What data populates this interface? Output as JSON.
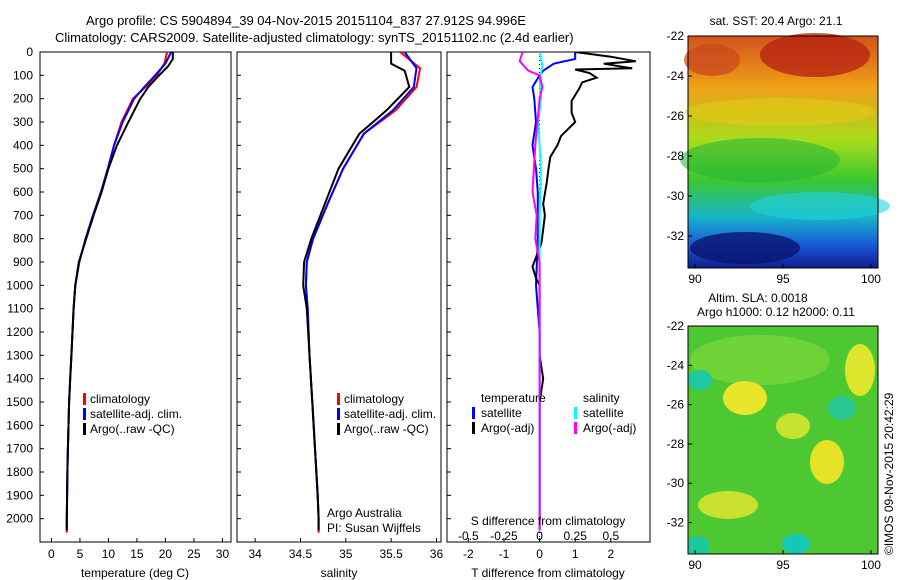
{
  "header": {
    "line1": "Argo profile: CS 5904894_39 04-Nov-2015 20151104_837 27.912S 94.996E",
    "line2": "Climatology: CARS2009. Satellite-adjusted climatology: synTS_20151102.nc (2.4d earlier)"
  },
  "colors": {
    "climatology": "#ff0000",
    "satellite": "#0000ff",
    "argo": "#000000",
    "sal_satellite": "#00ffff",
    "sal_argo": "#ff00ff"
  },
  "chart_data": [
    {
      "id": "temperature",
      "type": "line",
      "xlabel": "temperature (deg C)",
      "ylabel": "",
      "xlim": [
        -2,
        31.5
      ],
      "ylim": [
        2100,
        0
      ],
      "xticks": [
        0,
        5,
        10,
        15,
        20,
        25,
        30
      ],
      "yticks": [
        0,
        100,
        200,
        300,
        400,
        500,
        600,
        700,
        800,
        900,
        1000,
        1100,
        1200,
        1300,
        1400,
        1500,
        1600,
        1700,
        1800,
        1900,
        2000
      ],
      "legend": [
        "climatology",
        "satellite-adj. clim.",
        "Argo(..raw -QC)"
      ],
      "series": [
        {
          "name": "climatology",
          "color": "#ff0000",
          "points": [
            [
              20.3,
              0
            ],
            [
              19.8,
              50
            ],
            [
              18.5,
              100
            ],
            [
              16.5,
              150
            ],
            [
              14.3,
              200
            ],
            [
              12.3,
              300
            ],
            [
              11.0,
              400
            ],
            [
              9.9,
              500
            ],
            [
              8.7,
              600
            ],
            [
              7.3,
              700
            ],
            [
              6.0,
              800
            ],
            [
              4.9,
              900
            ],
            [
              4.2,
              1000
            ],
            [
              3.9,
              1100
            ],
            [
              3.7,
              1200
            ],
            [
              3.5,
              1300
            ],
            [
              3.3,
              1400
            ],
            [
              3.1,
              1500
            ],
            [
              3.0,
              1600
            ],
            [
              2.9,
              1700
            ],
            [
              2.8,
              1800
            ],
            [
              2.75,
              1900
            ],
            [
              2.7,
              2000
            ],
            [
              2.7,
              2060
            ]
          ]
        },
        {
          "name": "satellite-adj. clim.",
          "color": "#0000ff",
          "points": [
            [
              21.0,
              0
            ],
            [
              20.0,
              50
            ],
            [
              18.2,
              100
            ],
            [
              16.3,
              150
            ],
            [
              14.5,
              200
            ],
            [
              12.5,
              300
            ],
            [
              11.0,
              400
            ],
            [
              9.9,
              500
            ],
            [
              8.7,
              600
            ],
            [
              7.3,
              700
            ],
            [
              6.0,
              800
            ],
            [
              4.9,
              900
            ],
            [
              4.2,
              1000
            ],
            [
              3.9,
              1100
            ],
            [
              3.7,
              1200
            ],
            [
              3.5,
              1300
            ],
            [
              3.3,
              1400
            ],
            [
              3.1,
              1500
            ],
            [
              3.0,
              1600
            ],
            [
              2.9,
              1700
            ],
            [
              2.8,
              1800
            ],
            [
              2.75,
              1900
            ],
            [
              2.7,
              2000
            ],
            [
              2.7,
              2050
            ]
          ]
        },
        {
          "name": "Argo(..raw -QC)",
          "color": "#000000",
          "points": [
            [
              21.3,
              0
            ],
            [
              21.3,
              30
            ],
            [
              20.5,
              60
            ],
            [
              18.5,
              110
            ],
            [
              17.0,
              150
            ],
            [
              15.6,
              200
            ],
            [
              13.5,
              300
            ],
            [
              11.5,
              400
            ],
            [
              10.0,
              500
            ],
            [
              8.8,
              600
            ],
            [
              7.4,
              700
            ],
            [
              6.1,
              800
            ],
            [
              4.8,
              900
            ],
            [
              4.2,
              1000
            ],
            [
              3.9,
              1100
            ],
            [
              3.7,
              1200
            ],
            [
              3.5,
              1300
            ],
            [
              3.3,
              1400
            ],
            [
              3.1,
              1500
            ],
            [
              3.0,
              1600
            ],
            [
              2.9,
              1700
            ],
            [
              2.8,
              1800
            ],
            [
              2.75,
              1900
            ],
            [
              2.7,
              2000
            ],
            [
              2.7,
              2050
            ]
          ]
        }
      ]
    },
    {
      "id": "salinity",
      "type": "line",
      "xlabel": "salinity",
      "xlim": [
        33.8,
        36.05
      ],
      "ylim": [
        2100,
        0
      ],
      "xticks": [
        34,
        34.5,
        35,
        35.5,
        36
      ],
      "legend": [
        "climatology",
        "satellite-adj. clim.",
        "Argo(..raw -QC)"
      ],
      "annotation": [
        "Argo Australia",
        "PI: Susan Wijffels"
      ],
      "series": [
        {
          "name": "climatology",
          "color": "#ff0000",
          "points": [
            [
              35.6,
              0
            ],
            [
              35.82,
              70
            ],
            [
              35.78,
              150
            ],
            [
              35.55,
              250
            ],
            [
              35.2,
              350
            ],
            [
              34.97,
              500
            ],
            [
              34.8,
              650
            ],
            [
              34.63,
              800
            ],
            [
              34.57,
              900
            ],
            [
              34.56,
              1000
            ],
            [
              34.58,
              1100
            ],
            [
              34.6,
              1300
            ],
            [
              34.63,
              1500
            ],
            [
              34.66,
              1700
            ],
            [
              34.69,
              1900
            ],
            [
              34.7,
              2000
            ],
            [
              34.7,
              2060
            ]
          ]
        },
        {
          "name": "satellite-adj. clim.",
          "color": "#0000ff",
          "points": [
            [
              35.65,
              0
            ],
            [
              35.78,
              70
            ],
            [
              35.75,
              150
            ],
            [
              35.52,
              250
            ],
            [
              35.2,
              350
            ],
            [
              34.97,
              500
            ],
            [
              34.8,
              650
            ],
            [
              34.64,
              800
            ],
            [
              34.57,
              900
            ],
            [
              34.56,
              1000
            ],
            [
              34.58,
              1100
            ],
            [
              34.6,
              1300
            ],
            [
              34.63,
              1500
            ],
            [
              34.66,
              1700
            ],
            [
              34.69,
              1900
            ],
            [
              34.7,
              2000
            ],
            [
              34.7,
              2050
            ]
          ]
        },
        {
          "name": "Argo(..raw -QC)",
          "color": "#000000",
          "points": [
            [
              35.5,
              0
            ],
            [
              35.5,
              50
            ],
            [
              35.65,
              80
            ],
            [
              35.7,
              150
            ],
            [
              35.45,
              250
            ],
            [
              35.15,
              350
            ],
            [
              34.92,
              500
            ],
            [
              34.72,
              700
            ],
            [
              34.62,
              800
            ],
            [
              34.54,
              900
            ],
            [
              34.53,
              1000
            ],
            [
              34.57,
              1100
            ],
            [
              34.6,
              1300
            ],
            [
              34.63,
              1500
            ],
            [
              34.66,
              1700
            ],
            [
              34.69,
              1900
            ],
            [
              34.7,
              2000
            ],
            [
              34.7,
              2050
            ]
          ]
        }
      ]
    },
    {
      "id": "difference",
      "type": "line",
      "xlabel": "T difference from climatology",
      "x2label": "S difference from climatology",
      "xlim": [
        -2.6,
        3.1
      ],
      "x2lim": [
        -0.65,
        0.775
      ],
      "ylim": [
        2100,
        0
      ],
      "xticks": [
        -2,
        -1,
        0,
        1,
        2
      ],
      "x2ticks": [
        -0.5,
        -0.25,
        0,
        0.25,
        0.5
      ],
      "x2ticklabels": [
        "-0.5",
        "-0.25",
        "0",
        "0.25",
        "0.5"
      ],
      "legend_headers": [
        "temperature",
        "salinity"
      ],
      "legend": [
        "satellite",
        "Argo(-adj)",
        "satellite",
        "Argo(-adj)"
      ],
      "series": [
        {
          "name": "T satellite",
          "color": "#0000ff",
          "axis": "T",
          "points": [
            [
              1.0,
              0
            ],
            [
              1.0,
              30
            ],
            [
              0.4,
              50
            ],
            [
              0.1,
              80
            ],
            [
              0.0,
              100
            ],
            [
              -0.2,
              150
            ],
            [
              -0.15,
              200
            ],
            [
              -0.1,
              300
            ],
            [
              -0.2,
              400
            ],
            [
              -0.1,
              500
            ],
            [
              -0.05,
              600
            ],
            [
              -0.05,
              800
            ],
            [
              -0.1,
              1000
            ],
            [
              0,
              1200
            ],
            [
              0,
              1500
            ],
            [
              0,
              1800
            ],
            [
              0,
              2050
            ]
          ]
        },
        {
          "name": "T Argo(-adj)",
          "color": "#000000",
          "axis": "T",
          "points": [
            [
              1.0,
              0
            ],
            [
              2.0,
              20
            ],
            [
              2.7,
              40
            ],
            [
              1.8,
              50
            ],
            [
              2.6,
              70
            ],
            [
              1.0,
              75
            ],
            [
              1.4,
              90
            ],
            [
              1.6,
              110
            ],
            [
              1.2,
              130
            ],
            [
              1.1,
              160
            ],
            [
              0.9,
              210
            ],
            [
              0.9,
              260
            ],
            [
              1.0,
              300
            ],
            [
              0.6,
              360
            ],
            [
              0.5,
              400
            ],
            [
              0.3,
              450
            ],
            [
              0.25,
              500
            ],
            [
              0.2,
              560
            ],
            [
              0.1,
              650
            ],
            [
              0.15,
              700
            ],
            [
              0.1,
              760
            ],
            [
              0.05,
              820
            ],
            [
              -0.1,
              880
            ],
            [
              -0.2,
              920
            ],
            [
              -0.1,
              970
            ],
            [
              0,
              1000
            ],
            [
              0,
              1100
            ],
            [
              0,
              1300
            ],
            [
              0.1,
              1400
            ],
            [
              0,
              1500
            ],
            [
              0,
              1700
            ],
            [
              0,
              1900
            ],
            [
              0,
              2050
            ]
          ]
        },
        {
          "name": "S satellite",
          "color": "#00ffff",
          "axis": "S",
          "points": [
            [
              0.0,
              0
            ],
            [
              0.02,
              60
            ],
            [
              0.0,
              120
            ],
            [
              0.01,
              200
            ],
            [
              -0.01,
              300
            ],
            [
              0.0,
              400
            ],
            [
              0.01,
              500
            ],
            [
              0,
              700
            ],
            [
              0,
              1000
            ],
            [
              0,
              1300
            ],
            [
              0,
              1700
            ],
            [
              0,
              2050
            ]
          ]
        },
        {
          "name": "S Argo(-adj)",
          "color": "#ff00ff",
          "axis": "S",
          "points": [
            [
              -0.12,
              0
            ],
            [
              -0.14,
              40
            ],
            [
              -0.08,
              80
            ],
            [
              0.0,
              100
            ],
            [
              0.02,
              150
            ],
            [
              0.0,
              200
            ],
            [
              -0.03,
              400
            ],
            [
              -0.05,
              600
            ],
            [
              -0.02,
              700
            ],
            [
              -0.03,
              800
            ],
            [
              0.0,
              900
            ],
            [
              0,
              1000
            ],
            [
              0,
              1300
            ],
            [
              0,
              1600
            ],
            [
              0,
              2050
            ]
          ]
        }
      ]
    },
    {
      "id": "sst_map",
      "type": "heatmap",
      "title": "sat. SST: 20.4 Argo: 21.1",
      "xlim": [
        89.6,
        100.4
      ],
      "ylim": [
        -33.6,
        -22
      ],
      "xticks": [
        90,
        95,
        100
      ],
      "yticks": [
        -22,
        -24,
        -26,
        -28,
        -30,
        -32
      ],
      "gradient": "north warm (red/orange) to south cool (blue)"
    },
    {
      "id": "sla_map",
      "type": "heatmap",
      "title": [
        "Altim. SLA: 0.0018",
        "Argo h1000: 0.12 h2000: 0.11"
      ],
      "xlim": [
        89.6,
        100.4
      ],
      "ylim": [
        -33.6,
        -22
      ],
      "xticks": [
        90,
        95,
        100
      ],
      "yticks": [
        -22,
        -24,
        -26,
        -28,
        -30,
        -32
      ],
      "gradient": "green field with yellow highs and cyan lows"
    }
  ],
  "footer": {
    "stamp": "©IMOS 09-Nov-2015 20:42:29"
  }
}
